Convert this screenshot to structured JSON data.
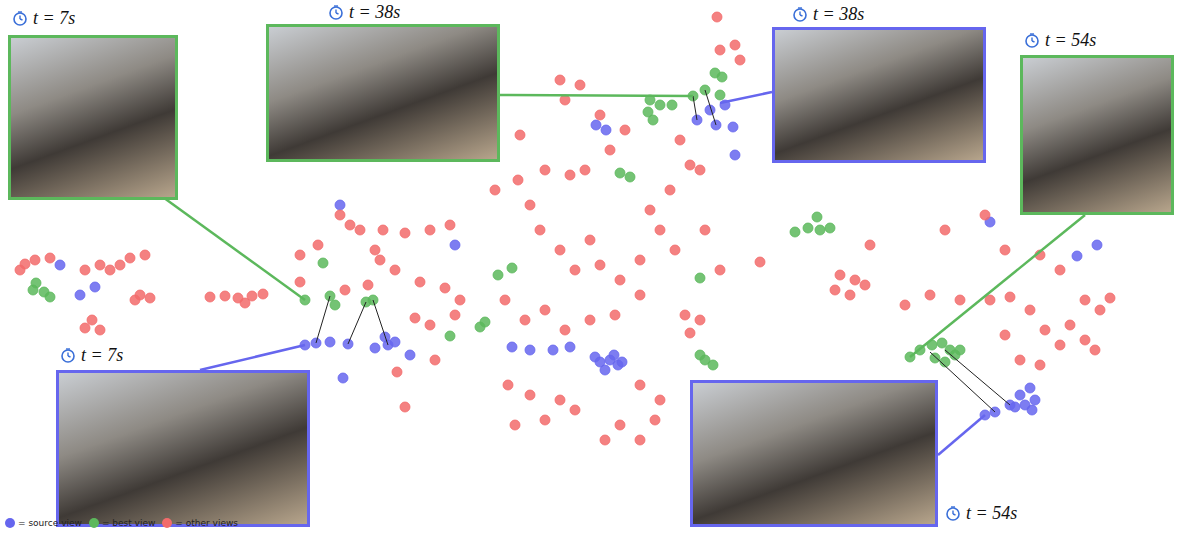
{
  "chart_data": {
    "type": "scatter",
    "tick_labels": false,
    "grid": false,
    "legend": "lower left",
    "xlim": [
      0,
      1180
    ],
    "ylim": [
      0,
      535
    ],
    "series": [
      {
        "name": "= source view",
        "color": "#6666ee",
        "marker": "circle",
        "x": [
          697,
          710,
          725,
          716,
          733,
          735,
          596,
          606,
          60,
          80,
          95,
          305,
          316,
          330,
          348,
          375,
          388,
          395,
          385,
          410,
          343,
          340,
          455,
          512,
          530,
          553,
          570,
          595,
          600,
          610,
          618,
          605,
          622,
          614,
          985,
          995,
          1010,
          1020,
          1030,
          1015,
          1025,
          1035,
          1032,
          990,
          1077,
          1097
        ],
        "y": [
          415,
          425,
          430,
          410,
          408,
          380,
          410,
          405,
          270,
          240,
          248,
          190,
          192,
          193,
          191,
          187,
          190,
          193,
          198,
          180,
          157,
          330,
          290,
          188,
          185,
          185,
          188,
          178,
          173,
          175,
          170,
          165,
          173,
          180,
          120,
          123,
          130,
          140,
          147,
          128,
          130,
          135,
          125,
          313,
          279,
          290
        ]
      },
      {
        "name": "= best view",
        "color": "#5cb85c",
        "marker": "circle",
        "x": [
          693,
          715,
          722,
          705,
          720,
          650,
          660,
          648,
          653,
          672,
          620,
          630,
          36,
          44,
          50,
          33,
          305,
          330,
          335,
          366,
          373,
          323,
          450,
          480,
          485,
          512,
          498,
          700,
          705,
          713,
          700,
          910,
          920,
          932,
          942,
          950,
          960,
          935,
          945,
          955,
          795,
          808,
          817,
          830,
          820
        ],
        "y": [
          439,
          462,
          458,
          445,
          440,
          435,
          430,
          423,
          415,
          430,
          362,
          358,
          252,
          243,
          238,
          245,
          235,
          239,
          230,
          233,
          235,
          272,
          199,
          208,
          213,
          267,
          260,
          180,
          175,
          170,
          257,
          178,
          185,
          190,
          192,
          185,
          185,
          177,
          173,
          180,
          303,
          307,
          318,
          307,
          305
        ]
      },
      {
        "name": "= other views",
        "color": "#f26b6b",
        "marker": "circle",
        "x": [
          25,
          35,
          50,
          20,
          85,
          100,
          110,
          120,
          130,
          145,
          140,
          150,
          135,
          92,
          85,
          100,
          210,
          225,
          238,
          252,
          263,
          245,
          300,
          318,
          340,
          350,
          360,
          383,
          405,
          430,
          450,
          375,
          395,
          420,
          445,
          460,
          415,
          430,
          455,
          380,
          368,
          345,
          300,
          405,
          397,
          435,
          495,
          518,
          530,
          540,
          560,
          575,
          590,
          600,
          620,
          640,
          650,
          670,
          660,
          640,
          615,
          590,
          565,
          545,
          525,
          505,
          520,
          545,
          570,
          585,
          610,
          625,
          560,
          580,
          565,
          600,
          680,
          690,
          700,
          720,
          735,
          717,
          740,
          508,
          530,
          560,
          575,
          515,
          545,
          605,
          620,
          640,
          660,
          655,
          640,
          685,
          700,
          690,
          720,
          675,
          705,
          760,
          840,
          855,
          865,
          850,
          835,
          870,
          945,
          985,
          1005,
          1040,
          1060,
          1085,
          1100,
          1110,
          1070,
          1085,
          1095,
          1060,
          1045,
          1030,
          1010,
          990,
          960,
          930,
          905,
          1005,
          1020,
          1040
        ],
        "y": [
          271,
          275,
          277,
          265,
          265,
          270,
          265,
          270,
          277,
          280,
          240,
          237,
          235,
          215,
          207,
          205,
          238,
          239,
          237,
          239,
          241,
          232,
          280,
          290,
          320,
          310,
          305,
          305,
          302,
          305,
          310,
          285,
          265,
          253,
          247,
          235,
          217,
          210,
          220,
          275,
          250,
          245,
          253,
          128,
          163,
          175,
          345,
          355,
          330,
          305,
          285,
          265,
          295,
          270,
          255,
          275,
          325,
          345,
          305,
          240,
          220,
          215,
          205,
          225,
          215,
          235,
          400,
          365,
          360,
          365,
          385,
          405,
          455,
          450,
          435,
          420,
          395,
          370,
          365,
          485,
          490,
          518,
          475,
          150,
          140,
          135,
          125,
          110,
          115,
          95,
          110,
          95,
          135,
          115,
          150,
          220,
          215,
          202,
          265,
          285,
          305,
          273,
          260,
          255,
          250,
          240,
          245,
          290,
          305,
          320,
          285,
          280,
          265,
          235,
          225,
          237,
          210,
          195,
          185,
          190,
          205,
          225,
          238,
          235,
          235,
          240,
          230,
          200,
          175,
          170
        ]
      }
    ],
    "annotations": [
      {
        "text": "t = 7s",
        "series": "= best view"
      },
      {
        "text": "t = 38s",
        "series": "= best view"
      },
      {
        "text": "t = 38s",
        "series": "= source view"
      },
      {
        "text": "t = 54s",
        "series": "= best view"
      },
      {
        "text": "t = 7s",
        "series": "= source view"
      },
      {
        "text": "t = 54s",
        "series": "= source view"
      }
    ]
  }
}
